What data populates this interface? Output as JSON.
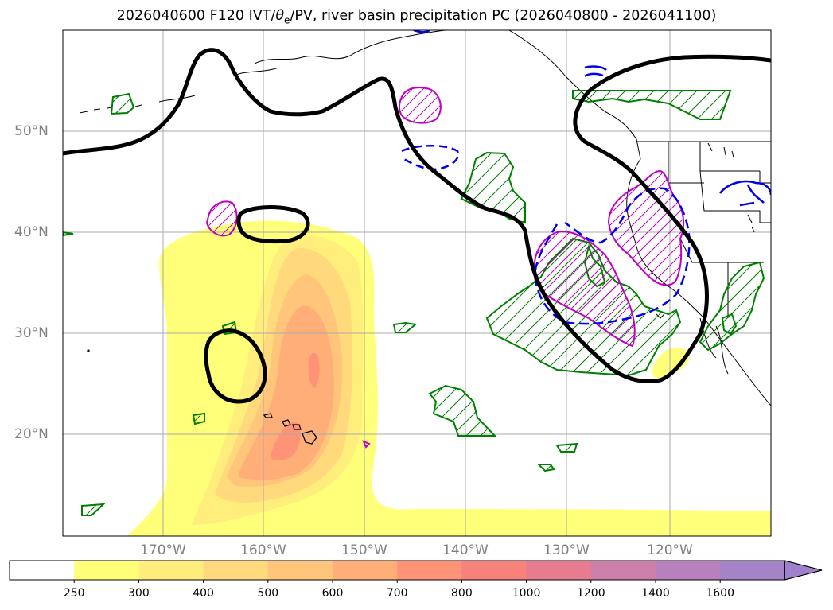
{
  "title": {
    "prefix": "2026040600 F120 IVT/",
    "theta": "θ",
    "theta_sub": "e",
    "suffix": "/PV, river basin precipitation PC (2026040800 - 2026041100)"
  },
  "lat_labels": [
    "50°N",
    "40°N",
    "30°N",
    "20°N"
  ],
  "lon_labels": [
    "170°W",
    "160°W",
    "150°W",
    "140°W",
    "130°W",
    "120°W"
  ],
  "colorbar": {
    "ticks": [
      "250",
      "300",
      "400",
      "500",
      "600",
      "700",
      "800",
      "1000",
      "1200",
      "1400",
      "1600"
    ],
    "colors": [
      "#ffffff",
      "#ffff7a",
      "#ffee7c",
      "#ffd97c",
      "#ffc57a",
      "#ffae78",
      "#ff9378",
      "#f7827b",
      "#e57c8f",
      "#cc7fa8",
      "#b980be",
      "#a583c9"
    ]
  },
  "legend_colors": {
    "theta_e_contour": "#000000",
    "pv_contour": "#0000ee",
    "precip_positive": "#008000",
    "precip_magenta": "#c000c0"
  }
}
